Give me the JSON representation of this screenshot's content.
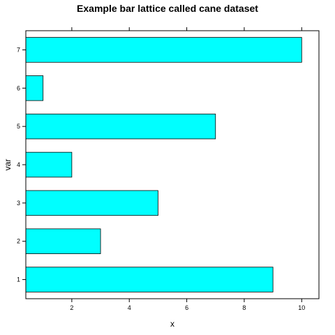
{
  "chart_data": {
    "type": "bar",
    "orientation": "horizontal",
    "title": "Example bar lattice called cane dataset",
    "xlabel": "x",
    "ylabel": "var",
    "categories": [
      "1",
      "2",
      "3",
      "4",
      "5",
      "6",
      "7"
    ],
    "values": [
      9,
      3,
      5,
      2,
      7,
      1,
      10
    ],
    "xlim": [
      0.4,
      10.6
    ],
    "xticks": [
      2,
      4,
      6,
      8,
      10
    ],
    "bar_color": "#00FFFF",
    "bar_edge_color": "#000000",
    "grid": false,
    "legend": false
  }
}
